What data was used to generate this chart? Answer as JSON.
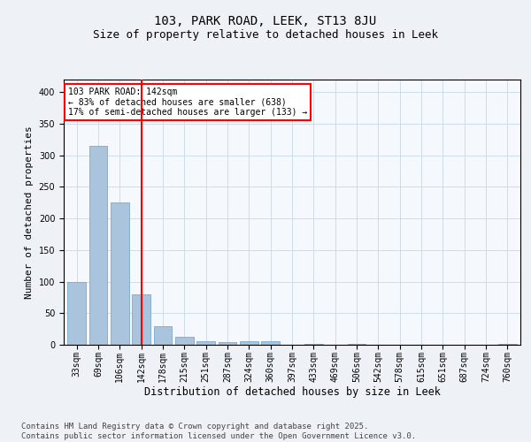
{
  "title1": "103, PARK ROAD, LEEK, ST13 8JU",
  "title2": "Size of property relative to detached houses in Leek",
  "xlabel": "Distribution of detached houses by size in Leek",
  "ylabel": "Number of detached properties",
  "categories": [
    "33sqm",
    "69sqm",
    "106sqm",
    "142sqm",
    "178sqm",
    "215sqm",
    "251sqm",
    "287sqm",
    "324sqm",
    "360sqm",
    "397sqm",
    "433sqm",
    "469sqm",
    "506sqm",
    "542sqm",
    "578sqm",
    "615sqm",
    "651sqm",
    "687sqm",
    "724sqm",
    "760sqm"
  ],
  "values": [
    100,
    315,
    225,
    80,
    30,
    12,
    5,
    4,
    5,
    6,
    0,
    1,
    0,
    1,
    0,
    0,
    0,
    0,
    0,
    0,
    2
  ],
  "bar_color": "#aac4de",
  "bar_edge_color": "#7aaacc",
  "vline_x": 3,
  "vline_color": "red",
  "annotation_text": "103 PARK ROAD: 142sqm\n← 83% of detached houses are smaller (638)\n17% of semi-detached houses are larger (133) →",
  "annotation_box_color": "white",
  "annotation_box_edge": "red",
  "ylim": [
    0,
    420
  ],
  "yticks": [
    0,
    50,
    100,
    150,
    200,
    250,
    300,
    350,
    400
  ],
  "bg_color": "#eef2f7",
  "plot_bg": "#f5f8fc",
  "footer": "Contains HM Land Registry data © Crown copyright and database right 2025.\nContains public sector information licensed under the Open Government Licence v3.0.",
  "title1_fontsize": 10,
  "title2_fontsize": 9,
  "xlabel_fontsize": 8.5,
  "ylabel_fontsize": 8,
  "tick_fontsize": 7,
  "footer_fontsize": 6.5
}
